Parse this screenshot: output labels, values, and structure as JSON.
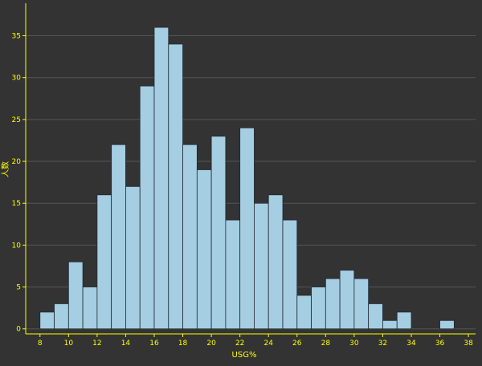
{
  "chart_data": {
    "type": "bar",
    "xlabel": "USG%",
    "ylabel": "人数",
    "x_ticks": [
      8,
      10,
      12,
      14,
      16,
      18,
      20,
      22,
      24,
      26,
      28,
      30,
      32,
      34,
      36,
      38
    ],
    "y_ticks": [
      0,
      5,
      10,
      15,
      20,
      25,
      30,
      35
    ],
    "xlim": [
      7,
      38.5
    ],
    "ylim": [
      -0.6,
      38.5
    ],
    "grid": true,
    "bin_width": 1,
    "bin_starts": [
      8,
      9,
      10,
      11,
      12,
      13,
      14,
      15,
      16,
      17,
      18,
      19,
      20,
      21,
      22,
      23,
      24,
      25,
      26,
      27,
      28,
      29,
      30,
      31,
      32,
      33,
      34,
      35,
      36
    ],
    "values": [
      2,
      3,
      8,
      5,
      16,
      22,
      17,
      29,
      36,
      34,
      22,
      19,
      23,
      13,
      24,
      15,
      16,
      13,
      4,
      5,
      6,
      7,
      6,
      3,
      1,
      2,
      0,
      0,
      1
    ],
    "colors": {
      "background": "#333333",
      "bar_fill": "#a6cee3",
      "bar_stroke": "#1f2a33",
      "axis": "#ffff00",
      "tick_label": "#ffff00",
      "grid": "#555555"
    }
  }
}
